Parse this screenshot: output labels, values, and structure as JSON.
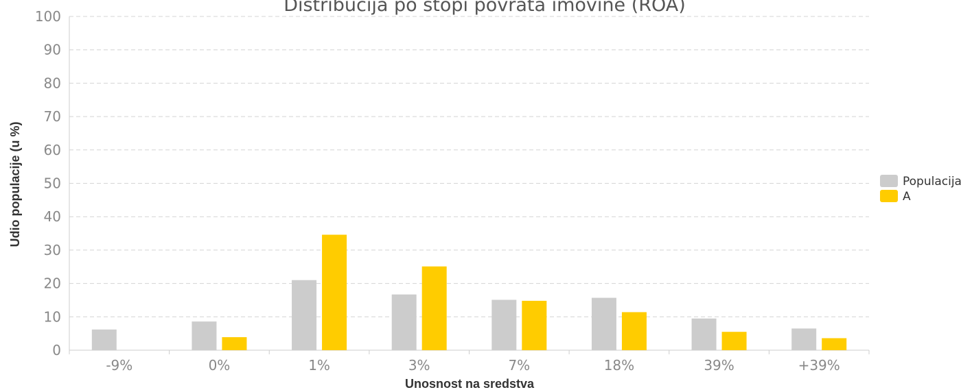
{
  "chart_data": {
    "type": "bar",
    "title": "Distribucija po stopi povrata imovine (ROA)",
    "xlabel": "Unosnost na sredstva",
    "ylabel": "Udio populacije (u %)",
    "categories": [
      "-9%",
      "0%",
      "1%",
      "3%",
      "7%",
      "18%",
      "39%",
      "+39%"
    ],
    "ylim": [
      0,
      100
    ],
    "yticks": [
      0,
      10,
      20,
      30,
      40,
      50,
      60,
      70,
      80,
      90,
      100
    ],
    "grid": true,
    "legend": "right",
    "series": [
      {
        "name": "Populacija",
        "color": "#cccccc",
        "values": [
          6.2,
          8.6,
          21,
          16.7,
          15.1,
          15.7,
          9.5,
          6.5
        ]
      },
      {
        "name": "A",
        "color": "#ffcc00",
        "values": [
          0,
          3.9,
          34.6,
          25.1,
          14.8,
          11.4,
          5.5,
          3.6
        ]
      }
    ]
  }
}
